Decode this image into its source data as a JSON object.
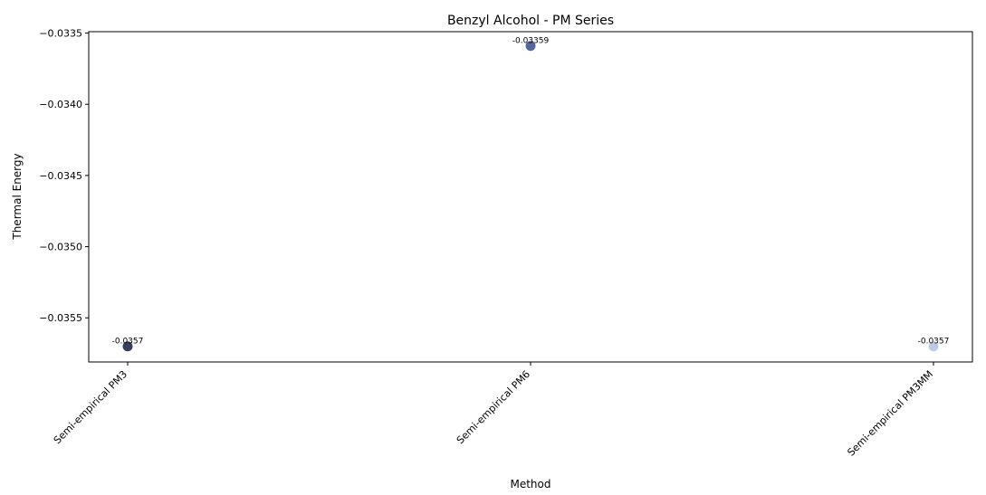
{
  "chart_data": {
    "type": "scatter",
    "title": "Benzyl Alcohol - PM Series",
    "xlabel": "Method",
    "ylabel": "Thermal Energy",
    "categories": [
      "Semi-empirical PM3",
      "Semi-empirical PM6",
      "Semi-empirical PM3MM"
    ],
    "values": [
      -0.0357,
      -0.03359,
      -0.0357
    ],
    "data_labels": [
      "-0.0357",
      "-0.03359",
      "-0.0357"
    ],
    "point_colors": [
      "#2b3557",
      "#4c5e93",
      "#b9c9e3"
    ],
    "ylim": [
      -0.03581,
      -0.03349
    ],
    "yticks": [
      -0.0335,
      -0.034,
      -0.0345,
      -0.035,
      -0.0355
    ],
    "ytick_labels": [
      "−0.0335",
      "−0.0340",
      "−0.0345",
      "−0.0350",
      "−0.0355"
    ],
    "grid": false,
    "legend": "none"
  }
}
